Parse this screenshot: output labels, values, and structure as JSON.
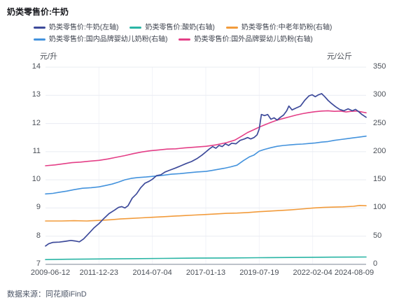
{
  "title": "奶类零售价:牛奶",
  "source": "数据来源：同花顺iFinD",
  "colors": {
    "milk_navy": "#3d4a9a",
    "yogurt_teal": "#2ab5a5",
    "elder_powder_orange": "#f29b3b",
    "domestic_infant_blue": "#4493dd",
    "foreign_infant_pink": "#e43f87",
    "gridline": "#e9ecf2",
    "grid_vertical": "#f2f3f8",
    "axis_line": "#a7aeb9",
    "tick_text": "#4b5058"
  },
  "chart_data": {
    "type": "line",
    "title": "奶类零售价:牛奶",
    "grid": true,
    "legend_position": "top",
    "left_axis": {
      "unit": "元/升",
      "min": 7,
      "max": 14,
      "ticks": [
        "14",
        "13",
        "12",
        "11",
        "10",
        "9",
        "8",
        "7"
      ]
    },
    "right_axis": {
      "unit": "元/公斤",
      "min": 0,
      "max": 350,
      "ticks": [
        "350",
        "300",
        "250",
        "200",
        "150",
        "100",
        "50",
        "0"
      ]
    },
    "x_axis": {
      "tick_labels": [
        "2009-06-12",
        "2011-12-23",
        "2014-07-04",
        "2017-01-13",
        "2019-07-19",
        "2022-02-04",
        "2024-08-09"
      ],
      "min_year": 2009.45,
      "max_year": 2024.6
    },
    "legend_rows": [
      [
        0,
        1,
        2
      ],
      [
        3,
        4
      ]
    ],
    "series": [
      {
        "name": "奶类零售价:牛奶(左轴)",
        "color": "#3d4a9a",
        "axis": "left",
        "z": 5,
        "points": [
          [
            2009.45,
            7.65
          ],
          [
            2009.6,
            7.73
          ],
          [
            2009.8,
            7.78
          ],
          [
            2010.1,
            7.79
          ],
          [
            2010.4,
            7.82
          ],
          [
            2010.65,
            7.85
          ],
          [
            2010.85,
            7.83
          ],
          [
            2011.05,
            7.8
          ],
          [
            2011.25,
            7.9
          ],
          [
            2011.5,
            8.1
          ],
          [
            2011.75,
            8.3
          ],
          [
            2011.98,
            8.45
          ],
          [
            2012.2,
            8.62
          ],
          [
            2012.45,
            8.8
          ],
          [
            2012.7,
            8.92
          ],
          [
            2012.9,
            9.02
          ],
          [
            2013.05,
            9.05
          ],
          [
            2013.2,
            9.0
          ],
          [
            2013.35,
            9.08
          ],
          [
            2013.55,
            9.35
          ],
          [
            2013.75,
            9.5
          ],
          [
            2013.95,
            9.72
          ],
          [
            2014.15,
            9.88
          ],
          [
            2014.35,
            9.95
          ],
          [
            2014.5,
            10.02
          ],
          [
            2014.7,
            10.15
          ],
          [
            2014.9,
            10.18
          ],
          [
            2015.1,
            10.28
          ],
          [
            2015.35,
            10.35
          ],
          [
            2015.6,
            10.42
          ],
          [
            2015.85,
            10.5
          ],
          [
            2016.1,
            10.58
          ],
          [
            2016.35,
            10.65
          ],
          [
            2016.6,
            10.75
          ],
          [
            2016.85,
            10.88
          ],
          [
            2017.04,
            11.0
          ],
          [
            2017.2,
            11.1
          ],
          [
            2017.35,
            11.18
          ],
          [
            2017.5,
            11.12
          ],
          [
            2017.65,
            11.22
          ],
          [
            2017.8,
            11.18
          ],
          [
            2017.95,
            11.28
          ],
          [
            2018.1,
            11.22
          ],
          [
            2018.25,
            11.3
          ],
          [
            2018.45,
            11.28
          ],
          [
            2018.65,
            11.4
          ],
          [
            2018.85,
            11.45
          ],
          [
            2019.0,
            11.5
          ],
          [
            2019.15,
            11.45
          ],
          [
            2019.3,
            11.5
          ],
          [
            2019.45,
            11.6
          ],
          [
            2019.55,
            11.8
          ],
          [
            2019.65,
            12.32
          ],
          [
            2019.8,
            12.28
          ],
          [
            2019.95,
            12.32
          ],
          [
            2020.1,
            12.15
          ],
          [
            2020.25,
            12.2
          ],
          [
            2020.4,
            12.12
          ],
          [
            2020.55,
            12.22
          ],
          [
            2020.7,
            12.3
          ],
          [
            2020.85,
            12.45
          ],
          [
            2020.95,
            12.62
          ],
          [
            2021.1,
            12.48
          ],
          [
            2021.3,
            12.55
          ],
          [
            2021.5,
            12.62
          ],
          [
            2021.7,
            12.82
          ],
          [
            2021.9,
            12.98
          ],
          [
            2022.05,
            13.02
          ],
          [
            2022.2,
            12.95
          ],
          [
            2022.35,
            13.02
          ],
          [
            2022.5,
            13.06
          ],
          [
            2022.65,
            12.95
          ],
          [
            2022.8,
            12.82
          ],
          [
            2022.95,
            12.72
          ],
          [
            2023.15,
            12.6
          ],
          [
            2023.35,
            12.5
          ],
          [
            2023.55,
            12.45
          ],
          [
            2023.75,
            12.52
          ],
          [
            2023.95,
            12.45
          ],
          [
            2024.1,
            12.5
          ],
          [
            2024.25,
            12.42
          ],
          [
            2024.4,
            12.32
          ],
          [
            2024.6,
            12.22
          ]
        ]
      },
      {
        "name": "奶类零售价:酸奶(右轴)",
        "color": "#2ab5a5",
        "axis": "right",
        "z": 1,
        "points": [
          [
            2009.45,
            8.5
          ],
          [
            2010.5,
            9
          ],
          [
            2011.98,
            9.5
          ],
          [
            2013.5,
            10
          ],
          [
            2015,
            10.5
          ],
          [
            2016.5,
            11
          ],
          [
            2018,
            11.3
          ],
          [
            2019.55,
            11.8
          ],
          [
            2021,
            12.2
          ],
          [
            2022.1,
            12.5
          ],
          [
            2023,
            12.8
          ],
          [
            2024.6,
            13
          ]
        ]
      },
      {
        "name": "奶类零售价:中老年奶粉(右轴)",
        "color": "#f29b3b",
        "axis": "right",
        "z": 2,
        "points": [
          [
            2009.45,
            77
          ],
          [
            2010.2,
            77
          ],
          [
            2010.8,
            77.5
          ],
          [
            2011.4,
            77
          ],
          [
            2011.98,
            78
          ],
          [
            2012.5,
            79
          ],
          [
            2013,
            80.5
          ],
          [
            2013.5,
            81.5
          ],
          [
            2014,
            82.5
          ],
          [
            2014.5,
            83.5
          ],
          [
            2015,
            84.5
          ],
          [
            2015.5,
            85.5
          ],
          [
            2016,
            86.5
          ],
          [
            2016.5,
            87.5
          ],
          [
            2017.04,
            88.5
          ],
          [
            2017.5,
            89.5
          ],
          [
            2018,
            90.5
          ],
          [
            2018.5,
            91
          ],
          [
            2019,
            92
          ],
          [
            2019.55,
            93.5
          ],
          [
            2020,
            94.5
          ],
          [
            2020.5,
            95.5
          ],
          [
            2021,
            96.5
          ],
          [
            2021.5,
            98
          ],
          [
            2022.1,
            100
          ],
          [
            2022.6,
            101
          ],
          [
            2023,
            101.5
          ],
          [
            2023.5,
            102
          ],
          [
            2024,
            103
          ],
          [
            2024.3,
            104.5
          ],
          [
            2024.6,
            104
          ]
        ]
      },
      {
        "name": "奶类零售价:国内品牌婴幼儿奶粉(右轴)",
        "color": "#4493dd",
        "axis": "right",
        "z": 3,
        "points": [
          [
            2009.45,
            125
          ],
          [
            2009.8,
            126
          ],
          [
            2010.1,
            128
          ],
          [
            2010.45,
            130
          ],
          [
            2010.8,
            132.5
          ],
          [
            2011.2,
            135
          ],
          [
            2011.6,
            136
          ],
          [
            2011.98,
            137.5
          ],
          [
            2012.3,
            140
          ],
          [
            2012.6,
            142.5
          ],
          [
            2012.9,
            146
          ],
          [
            2013.2,
            150
          ],
          [
            2013.5,
            152.5
          ],
          [
            2013.8,
            154
          ],
          [
            2014.2,
            155
          ],
          [
            2014.6,
            156.5
          ],
          [
            2015,
            158
          ],
          [
            2015.4,
            160
          ],
          [
            2015.8,
            161
          ],
          [
            2016.2,
            162.5
          ],
          [
            2016.6,
            164
          ],
          [
            2017.04,
            165
          ],
          [
            2017.3,
            166.5
          ],
          [
            2017.6,
            168.5
          ],
          [
            2017.9,
            170.5
          ],
          [
            2018.2,
            173
          ],
          [
            2018.5,
            176
          ],
          [
            2018.8,
            184
          ],
          [
            2019.1,
            191
          ],
          [
            2019.3,
            194
          ],
          [
            2019.55,
            201
          ],
          [
            2019.8,
            204
          ],
          [
            2020.1,
            207
          ],
          [
            2020.4,
            209.5
          ],
          [
            2020.7,
            211
          ],
          [
            2021,
            212
          ],
          [
            2021.3,
            213
          ],
          [
            2021.6,
            213.5
          ],
          [
            2021.9,
            214.5
          ],
          [
            2022.2,
            215.5
          ],
          [
            2022.5,
            217
          ],
          [
            2022.8,
            218
          ],
          [
            2023.1,
            220
          ],
          [
            2023.4,
            221.5
          ],
          [
            2023.7,
            223
          ],
          [
            2024,
            224.5
          ],
          [
            2024.3,
            226
          ],
          [
            2024.6,
            227.5
          ]
        ]
      },
      {
        "name": "奶类零售价:国外品牌婴幼儿奶粉(右轴)",
        "color": "#e43f87",
        "axis": "right",
        "z": 4,
        "points": [
          [
            2009.45,
            175
          ],
          [
            2009.9,
            176.5
          ],
          [
            2010.3,
            178.5
          ],
          [
            2010.7,
            180.5
          ],
          [
            2011.1,
            181.5
          ],
          [
            2011.5,
            183
          ],
          [
            2011.98,
            184.5
          ],
          [
            2012.4,
            187
          ],
          [
            2012.8,
            190
          ],
          [
            2013.2,
            193
          ],
          [
            2013.6,
            196.5
          ],
          [
            2014,
            199.5
          ],
          [
            2014.4,
            201.5
          ],
          [
            2014.8,
            203
          ],
          [
            2015.2,
            204.5
          ],
          [
            2015.6,
            205
          ],
          [
            2016,
            206.5
          ],
          [
            2016.5,
            208
          ],
          [
            2017.04,
            209.5
          ],
          [
            2017.5,
            212
          ],
          [
            2018,
            216
          ],
          [
            2018.4,
            220.5
          ],
          [
            2018.7,
            227
          ],
          [
            2019,
            234
          ],
          [
            2019.3,
            239
          ],
          [
            2019.55,
            243.5
          ],
          [
            2019.8,
            247.5
          ],
          [
            2020.1,
            252
          ],
          [
            2020.4,
            256
          ],
          [
            2020.7,
            259
          ],
          [
            2021,
            262
          ],
          [
            2021.3,
            265
          ],
          [
            2021.6,
            267.5
          ],
          [
            2021.9,
            269.5
          ],
          [
            2022.2,
            271
          ],
          [
            2022.5,
            272
          ],
          [
            2022.8,
            272.5
          ],
          [
            2023.1,
            271.5
          ],
          [
            2023.4,
            272
          ],
          [
            2023.65,
            270.5
          ],
          [
            2023.9,
            271.5
          ],
          [
            2024.15,
            272
          ],
          [
            2024.4,
            270.5
          ],
          [
            2024.6,
            269
          ]
        ]
      }
    ]
  }
}
